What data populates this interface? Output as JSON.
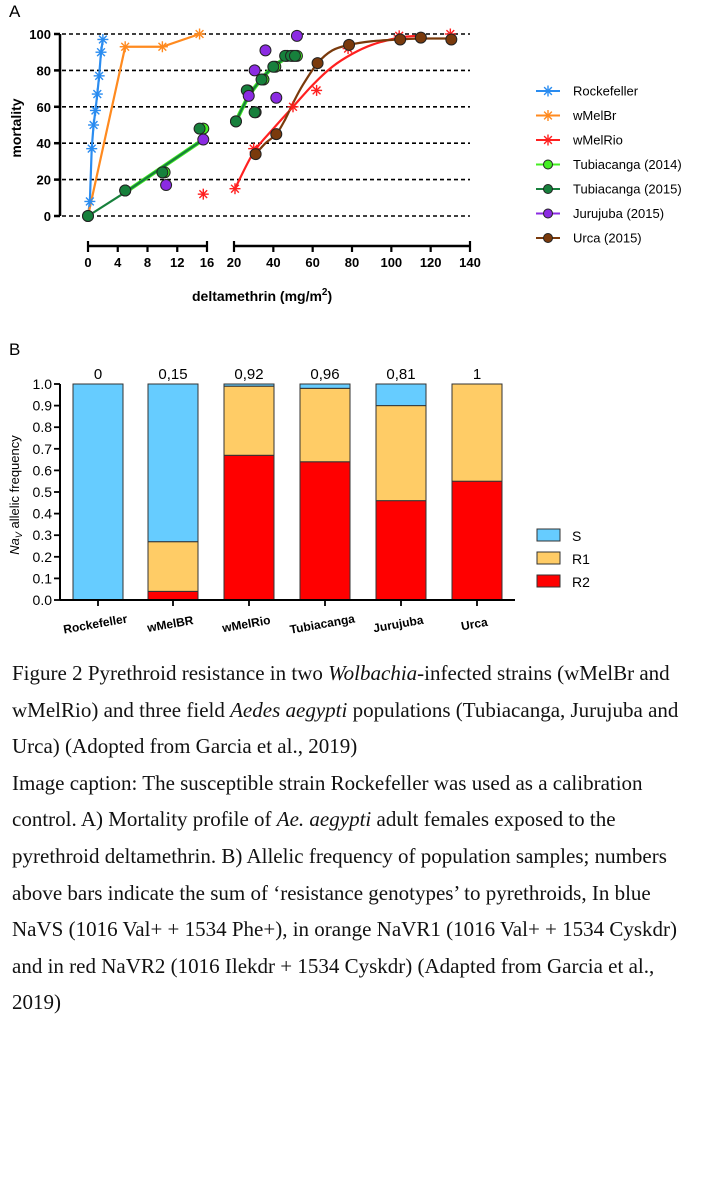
{
  "chart_data": [
    {
      "panel": "A",
      "type": "scatter",
      "title": "",
      "xlabel": "deltamethrin (mg/m",
      "xlabel_sup": "2",
      "xlabel_close": ")",
      "ylabel": "mortality",
      "xlim_segments": [
        [
          0,
          16
        ],
        [
          20,
          140
        ]
      ],
      "ylim": [
        0,
        100
      ],
      "yticks": [
        0,
        20,
        40,
        60,
        80,
        100
      ],
      "xticks_segment1": [
        0,
        4,
        8,
        12,
        16
      ],
      "xticks_segment2": [
        20,
        40,
        60,
        80,
        100,
        120,
        140
      ],
      "grid": "horizontal dashed",
      "legend_position": "right",
      "series": [
        {
          "name": "Rockefeller",
          "color": "#2a8cf0",
          "marker": "asterisk",
          "line": "straight",
          "points": [
            [
              0,
              0
            ],
            [
              0.25,
              8
            ],
            [
              0.5,
              37
            ],
            [
              0.75,
              50
            ],
            [
              1,
              58
            ],
            [
              1.25,
              67
            ],
            [
              1.5,
              77
            ],
            [
              1.75,
              90
            ],
            [
              2,
              97
            ]
          ]
        },
        {
          "name": "wMelBr",
          "color": "#ff8a1f",
          "marker": "asterisk",
          "line": "straight",
          "points": [
            [
              0,
              0
            ],
            [
              5,
              93
            ],
            [
              10,
              93
            ],
            [
              15,
              100
            ]
          ]
        },
        {
          "name": "wMelRio",
          "color": "#ff2020",
          "marker": "asterisk",
          "line": "fit",
          "points": [
            [
              15.5,
              12
            ],
            [
              20.5,
              15
            ],
            [
              30,
              37
            ],
            [
              50,
              60
            ],
            [
              62,
              69
            ],
            [
              78,
              92
            ],
            [
              104,
              99
            ],
            [
              130,
              100
            ]
          ],
          "fit": [
            [
              20.5,
              15
            ],
            [
              30,
              35
            ],
            [
              40,
              48
            ],
            [
              50,
              60
            ],
            [
              60,
              72
            ],
            [
              70,
              82
            ],
            [
              80,
              89
            ],
            [
              90,
              94
            ],
            [
              104,
              98
            ],
            [
              115,
              99
            ]
          ]
        },
        {
          "name": "Tubiacanga (2014)",
          "color": "#44ee22",
          "marker": "circle",
          "line": "fit",
          "points": [
            [
              0,
              0
            ],
            [
              5,
              14
            ],
            [
              10.3,
              24
            ],
            [
              15.5,
              48
            ],
            [
              21,
              52
            ],
            [
              27,
              69
            ],
            [
              31,
              57
            ],
            [
              35,
              75
            ],
            [
              41,
              82
            ],
            [
              47,
              88
            ],
            [
              50,
              88
            ],
            [
              52,
              88
            ]
          ],
          "fit_seg1": [
            [
              5,
              13
            ],
            [
              15.5,
              42
            ]
          ],
          "fit_seg2": [
            [
              21,
              52
            ],
            [
              27,
              65
            ],
            [
              33,
              74
            ],
            [
              40,
              82
            ],
            [
              48,
              88
            ]
          ]
        },
        {
          "name": "Tubiacanga (2015)",
          "color": "#17803c",
          "marker": "circle",
          "line": "fit",
          "points": [
            [
              0,
              0
            ],
            [
              5,
              14
            ],
            [
              10,
              24
            ],
            [
              15,
              48
            ],
            [
              21,
              52
            ],
            [
              26.5,
              69
            ],
            [
              30.5,
              57
            ],
            [
              34,
              75
            ],
            [
              40,
              82
            ],
            [
              46,
              88
            ],
            [
              49,
              88
            ],
            [
              51,
              88
            ]
          ],
          "fit_seg1": [
            [
              0,
              0
            ],
            [
              5,
              13
            ],
            [
              15.5,
              42
            ]
          ],
          "fit_seg2": [
            [
              21,
              52
            ],
            [
              27,
              65
            ],
            [
              33,
              74
            ],
            [
              40,
              82
            ],
            [
              48,
              88
            ]
          ]
        },
        {
          "name": "Jurujuba (2015)",
          "color": "#8b2be2",
          "marker": "circle",
          "line": "none",
          "points": [
            [
              15.5,
              42
            ],
            [
              10.5,
              17
            ],
            [
              27.5,
              66
            ],
            [
              30.5,
              80
            ],
            [
              36,
              91
            ],
            [
              41.5,
              65
            ],
            [
              52,
              99
            ]
          ]
        },
        {
          "name": "Urca (2015)",
          "color": "#7a3a0c",
          "marker": "circle",
          "line": "fit",
          "points": [
            [
              31,
              34
            ],
            [
              41.5,
              45
            ],
            [
              62.5,
              84
            ],
            [
              78.5,
              94
            ],
            [
              104.5,
              97
            ],
            [
              115,
              98
            ],
            [
              130.5,
              97
            ]
          ],
          "fit": [
            [
              31,
              34
            ],
            [
              36,
              40
            ],
            [
              41.5,
              45
            ],
            [
              46,
              53
            ],
            [
              50,
              62
            ],
            [
              55,
              72
            ],
            [
              62.5,
              84
            ],
            [
              70,
              91
            ],
            [
              78.5,
              94
            ],
            [
              90,
              96
            ],
            [
              104.5,
              97
            ],
            [
              115,
              97.5
            ],
            [
              130.5,
              97.5
            ]
          ]
        }
      ]
    },
    {
      "panel": "B",
      "type": "bar",
      "stacked": true,
      "title": "",
      "xlabel": "",
      "ylabel_main": "Na",
      "ylabel_sub": "V",
      "ylabel_rest": " allelic frequency",
      "ylim": [
        0,
        1.0
      ],
      "yticks": [
        "0.0",
        "0.1",
        "0.2",
        "0.3",
        "0.4",
        "0.5",
        "0.6",
        "0.7",
        "0.8",
        "0.9",
        "1.0"
      ],
      "categories": [
        "Rockefeller",
        "wMelBR",
        "wMelRio",
        "Tubiacanga",
        "Jurujuba",
        "Urca"
      ],
      "annotations": [
        "0",
        "0,15",
        "0,92",
        "0,96",
        "0,81",
        "1"
      ],
      "legend_position": "right",
      "series": [
        {
          "name": "R2",
          "color": "#ff0000",
          "values": [
            0,
            0.04,
            0.67,
            0.64,
            0.46,
            0.55
          ]
        },
        {
          "name": "R1",
          "color": "#ffcc66",
          "values": [
            0,
            0.23,
            0.32,
            0.34,
            0.44,
            0.45
          ]
        },
        {
          "name": "S",
          "color": "#66ccff",
          "values": [
            1.0,
            0.73,
            0.01,
            0.02,
            0.1,
            0.0
          ]
        }
      ],
      "legend_order": [
        "S",
        "R1",
        "R2"
      ]
    }
  ],
  "caption": {
    "figure_title_parts": [
      {
        "text": "Figure 2 Pyrethroid resistance in two ",
        "italic": false
      },
      {
        "text": "Wolbachia",
        "italic": true
      },
      {
        "text": "-infected strains (wMelBr and wMelRio) and three field ",
        "italic": false
      },
      {
        "text": "Aedes aegypti",
        "italic": true
      },
      {
        "text": " populations (Tubiacanga, Jurujuba and Urca) (Adopted from Garcia et al., 2019)",
        "italic": false
      }
    ],
    "image_caption_parts": [
      {
        "text": "Image caption: The susceptible strain Rockefeller was used as a calibration control. A) Mortality profile of ",
        "italic": false
      },
      {
        "text": "Ae. aegypti",
        "italic": true
      },
      {
        "text": " adult females exposed to the pyrethroid deltamethrin. B) Allelic frequency of population samples; numbers above bars indicate the sum of ‘resistance genotypes’ to pyrethroids, In blue NaVS (1016 Val+ + 1534 Phe+), in orange NaVR1 (1016 Val+ + 1534 Cyskdr) and in red NaVR2 (1016 Ilekdr + 1534 Cyskdr) (Adapted from Garcia et al., 2019)",
        "italic": false
      }
    ]
  },
  "panel_labels": {
    "a": "A",
    "b": "B"
  }
}
